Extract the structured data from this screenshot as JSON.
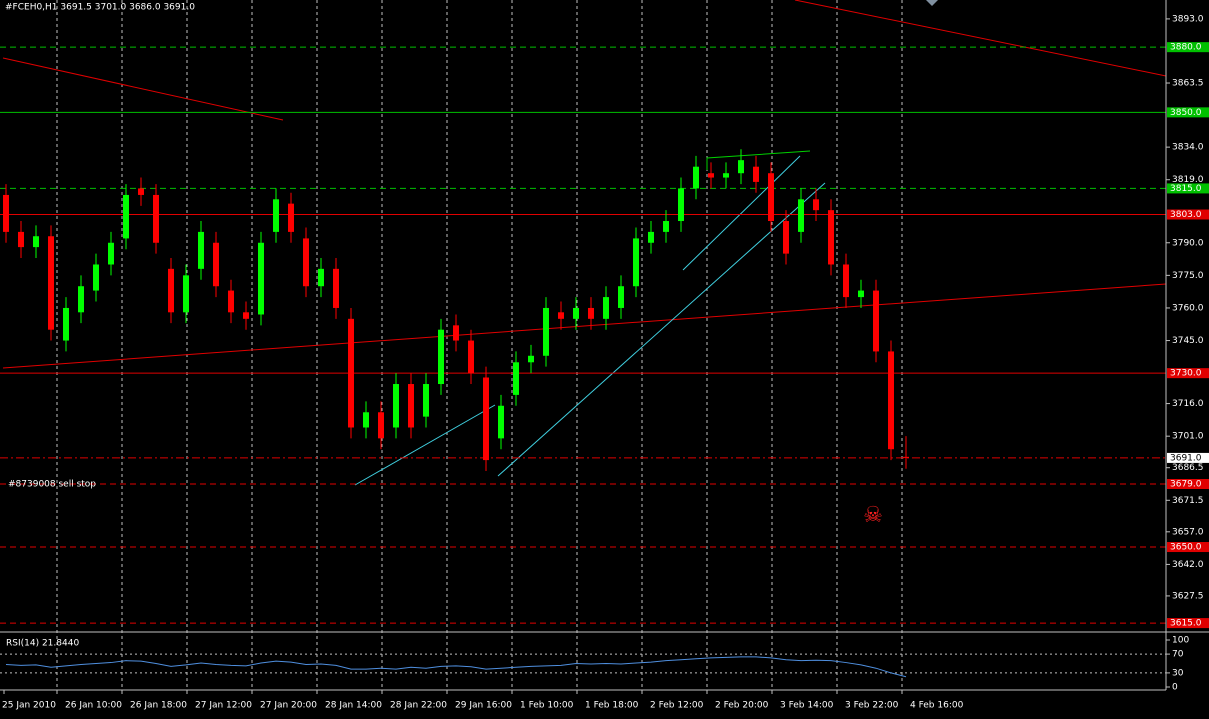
{
  "header": {
    "symbol_info": "#FCEH0,H1  3691.5 3701.0 3686.0 3691.0"
  },
  "chart_data": {
    "type": "candlestick",
    "ylim": [
      3610.9,
      3901.7
    ],
    "yticks": [
      {
        "value": 3893,
        "label": "3893.0"
      },
      {
        "value": 3863.5,
        "label": "3863.5"
      },
      {
        "value": 3834,
        "label": "3834.0"
      },
      {
        "value": 3819,
        "label": "3819.0"
      },
      {
        "value": 3790,
        "label": "3790.0"
      },
      {
        "value": 3775,
        "label": "3775.0"
      },
      {
        "value": 3760,
        "label": "3760.0"
      },
      {
        "value": 3745,
        "label": "3745.0"
      },
      {
        "value": 3716,
        "label": "3716.0"
      },
      {
        "value": 3701,
        "label": "3701.0"
      },
      {
        "value": 3686.5,
        "label": "3686.5"
      },
      {
        "value": 3671.5,
        "label": "3671.5"
      },
      {
        "value": 3657,
        "label": "3657.0"
      },
      {
        "value": 3642,
        "label": "3642.0"
      },
      {
        "value": 3627.5,
        "label": "3627.5"
      }
    ],
    "x_labels": [
      "25 Jan 2010",
      "26 Jan 10:00",
      "26 Jan 18:00",
      "27 Jan 12:00",
      "27 Jan 20:00",
      "28 Jan 14:00",
      "28 Jan 22:00",
      "29 Jan 16:00",
      "1 Feb 10:00",
      "1 Feb 18:00",
      "2 Feb 12:00",
      "2 Feb 20:00",
      "3 Feb 14:00",
      "3 Feb 22:00",
      "4 Feb 16:00"
    ],
    "up_color": "#00ff00",
    "down_color": "#ff0000",
    "open": [
      3812,
      3795,
      3788,
      3793,
      3745,
      3758,
      3768,
      3780,
      3792,
      3815,
      3812,
      3778,
      3758,
      3778,
      3790,
      3768,
      3758,
      3757,
      3795,
      3808,
      3792,
      3770,
      3778,
      3755,
      3705,
      3712,
      3705,
      3725,
      3710,
      3725,
      3752,
      3745,
      3728,
      3700,
      3720,
      3735,
      3738,
      3758,
      3755,
      3760,
      3755,
      3760,
      3770,
      3790,
      3795,
      3800,
      3815,
      3822,
      3820,
      3822,
      3825,
      3822,
      3800,
      3795,
      3810,
      3805,
      3780,
      3765,
      3768,
      3740,
      3691.5
    ],
    "high": [
      3817,
      3800,
      3798,
      3798,
      3765,
      3775,
      3785,
      3795,
      3817,
      3820,
      3817,
      3783,
      3780,
      3800,
      3795,
      3773,
      3763,
      3795,
      3815,
      3813,
      3797,
      3783,
      3783,
      3760,
      3717,
      3717,
      3730,
      3730,
      3730,
      3755,
      3757,
      3750,
      3733,
      3720,
      3740,
      3743,
      3765,
      3763,
      3765,
      3765,
      3770,
      3775,
      3797,
      3800,
      3805,
      3820,
      3830,
      3827,
      3827,
      3833,
      3830,
      3827,
      3805,
      3815,
      3815,
      3810,
      3785,
      3773,
      3773,
      3745,
      3701
    ],
    "low": [
      3790,
      3783,
      3783,
      3745,
      3740,
      3753,
      3763,
      3775,
      3787,
      3807,
      3785,
      3753,
      3753,
      3773,
      3765,
      3753,
      3750,
      3752,
      3790,
      3790,
      3765,
      3765,
      3755,
      3700,
      3700,
      3695,
      3700,
      3700,
      3705,
      3720,
      3740,
      3725,
      3685,
      3695,
      3715,
      3730,
      3733,
      3750,
      3750,
      3750,
      3750,
      3755,
      3765,
      3785,
      3790,
      3795,
      3810,
      3815,
      3815,
      3817,
      3813,
      3795,
      3780,
      3790,
      3800,
      3775,
      3760,
      3760,
      3735,
      3690,
      3686
    ],
    "close": [
      3795,
      3788,
      3793,
      3750,
      3760,
      3770,
      3780,
      3790,
      3812,
      3812,
      3790,
      3758,
      3775,
      3795,
      3770,
      3758,
      3755,
      3790,
      3810,
      3795,
      3770,
      3778,
      3760,
      3705,
      3712,
      3700,
      3725,
      3705,
      3725,
      3750,
      3745,
      3730,
      3690,
      3715,
      3735,
      3738,
      3760,
      3755,
      3760,
      3755,
      3765,
      3770,
      3792,
      3795,
      3800,
      3815,
      3825,
      3820,
      3822,
      3828,
      3818,
      3800,
      3785,
      3810,
      3805,
      3780,
      3765,
      3768,
      3740,
      3695,
      3691
    ],
    "levels": [
      {
        "value": 3880,
        "label": "3880.0",
        "color": "#00c000",
        "style": "dashed"
      },
      {
        "value": 3850,
        "label": "3850.0",
        "color": "#00c000",
        "style": "solid"
      },
      {
        "value": 3815,
        "label": "3815.0",
        "color": "#00c000",
        "style": "dashed"
      },
      {
        "value": 3803,
        "label": "3803.0",
        "color": "#e00000",
        "style": "solid"
      },
      {
        "value": 3730,
        "label": "3730.0",
        "color": "#e00000",
        "style": "solid"
      },
      {
        "value": 3691,
        "label": "3691.0",
        "color": "#e00000",
        "style": "dashdot",
        "box": "#ffffff"
      },
      {
        "value": 3679,
        "label": "3679.0",
        "color": "#e00000",
        "style": "dashed"
      },
      {
        "value": 3650,
        "label": "3650.0",
        "color": "#e00000",
        "style": "dashed"
      },
      {
        "value": 3615,
        "label": "3615.0",
        "color": "#e00000",
        "style": "dashed"
      }
    ],
    "order_label": "#8739008 sell stop",
    "rsi": {
      "title": "RSI(14) 21.8440",
      "color": "#4f8fdf",
      "ylim": [
        0,
        100
      ],
      "yticks": [
        100,
        70,
        30,
        0
      ],
      "levels": [
        70,
        30
      ],
      "values": [
        48,
        46,
        47,
        42,
        45,
        48,
        50,
        52,
        56,
        55,
        50,
        44,
        47,
        51,
        48,
        46,
        45,
        51,
        55,
        53,
        48,
        49,
        46,
        38,
        38,
        40,
        38,
        42,
        40,
        44,
        45,
        43,
        38,
        40,
        42,
        44,
        45,
        46,
        50,
        49,
        50,
        49,
        51,
        53,
        56,
        58,
        60,
        62,
        63,
        64,
        64,
        62,
        58,
        56,
        57,
        56,
        52,
        47,
        40,
        30,
        21.844
      ]
    }
  }
}
